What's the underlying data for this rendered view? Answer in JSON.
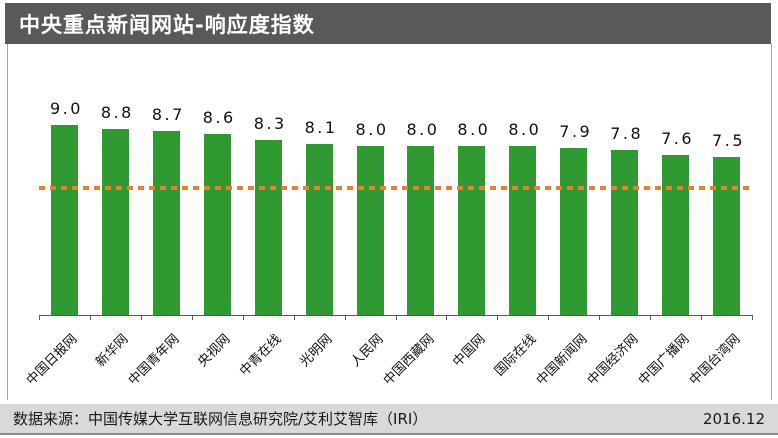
{
  "header": {
    "title": "中央重点新闻网站-响应度指数",
    "bg_color": "#595959",
    "text_color": "#ffffff"
  },
  "chart_data": {
    "type": "bar",
    "title": "中央重点新闻网站-响应度指数",
    "categories": [
      "中国日报网",
      "新华网",
      "中国青年网",
      "央视网",
      "中青在线",
      "光明网",
      "人民网",
      "中国西藏网",
      "中国网",
      "国际在线",
      "中国新闻网",
      "中国经济网",
      "中国广播网",
      "中国台湾网"
    ],
    "values": [
      9.0,
      8.8,
      8.7,
      8.6,
      8.3,
      8.1,
      8.0,
      8.0,
      8.0,
      8.0,
      7.9,
      7.8,
      7.6,
      7.5
    ],
    "value_labels": [
      "9.0",
      "8.8",
      "8.7",
      "8.6",
      "8.3",
      "8.1",
      "8.0",
      "8.0",
      "8.0",
      "8.0",
      "7.9",
      "7.8",
      "7.6",
      "7.5"
    ],
    "bar_color": "#2f9932",
    "reference_line": {
      "value": 6.0,
      "color": "#ed7d31",
      "style": "dashed"
    },
    "xlabel": "",
    "ylabel": "",
    "ylim": [
      0,
      9.5
    ],
    "grid": false,
    "legend": false,
    "x_tick_rotation": 45
  },
  "footer": {
    "source": "数据来源：中国传媒大学互联网信息研究院/艾利艾智库（IRI）",
    "date": "2016.12"
  }
}
